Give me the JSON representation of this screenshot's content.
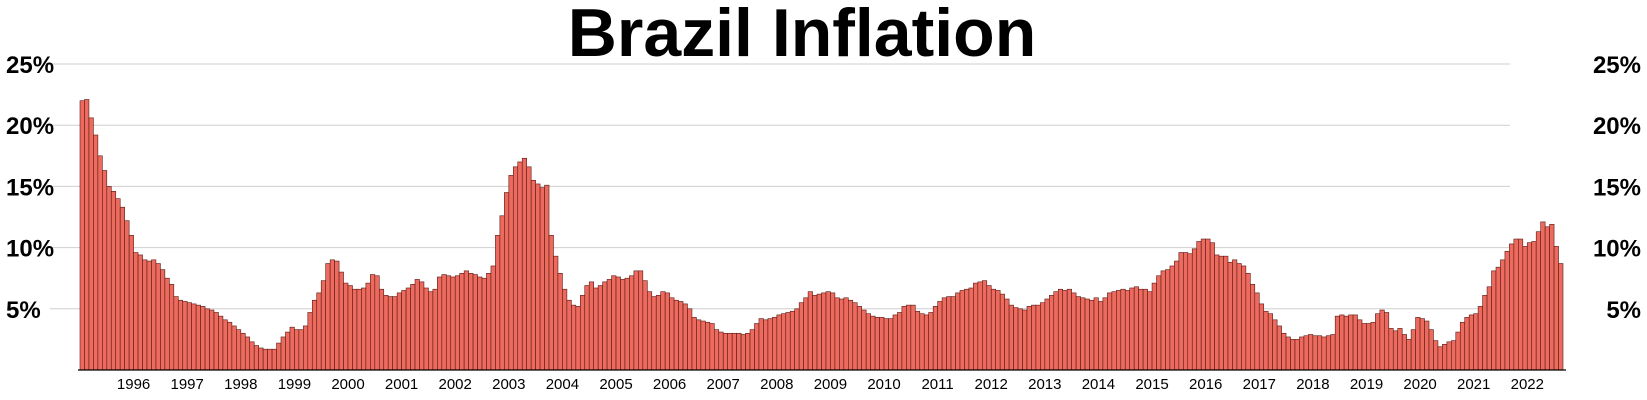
{
  "chart_data": {
    "type": "bar",
    "title": "Brazil Inflation",
    "xlabel": "",
    "ylabel": "",
    "ylim": [
      0,
      25
    ],
    "y_ticks": [
      "5%",
      "10%",
      "15%",
      "20%",
      "25%"
    ],
    "y_tick_values": [
      5,
      10,
      15,
      20,
      25
    ],
    "y_axis_sides": "both",
    "x_tick_labels": [
      "1996",
      "1997",
      "1998",
      "1999",
      "2000",
      "2001",
      "2002",
      "2003",
      "2004",
      "2005",
      "2006",
      "2007",
      "2008",
      "2009",
      "2010",
      "2011",
      "2012",
      "2013",
      "2014",
      "2015",
      "2016",
      "2017",
      "2018",
      "2019",
      "2020",
      "2021",
      "2022"
    ],
    "grid": true,
    "colors": {
      "bar": "#ec6a5e",
      "bar_edge": "#5a1a14"
    },
    "series": [
      {
        "frequency": "monthly",
        "start": "1995-07",
        "values": [
          22.0,
          22.1,
          20.6,
          19.2,
          17.5,
          16.3,
          15.0,
          14.6,
          14.0,
          13.3,
          12.2,
          11.0,
          9.6,
          9.4,
          9.0,
          8.9,
          9.0,
          8.7,
          8.2,
          7.5,
          7.0,
          6.0,
          5.7,
          5.6,
          5.5,
          5.4,
          5.3,
          5.2,
          5.0,
          4.9,
          4.7,
          4.4,
          4.1,
          3.9,
          3.6,
          3.3,
          3.0,
          2.7,
          2.3,
          2.0,
          1.8,
          1.7,
          1.7,
          1.7,
          2.2,
          2.7,
          3.1,
          3.5,
          3.3,
          3.3,
          3.6,
          4.7,
          5.7,
          6.3,
          7.3,
          8.7,
          9.0,
          8.9,
          8.0,
          7.1,
          6.9,
          6.6,
          6.6,
          6.7,
          7.1,
          7.8,
          7.7,
          6.6,
          6.1,
          6.0,
          6.0,
          6.3,
          6.5,
          6.7,
          7.0,
          7.4,
          7.2,
          6.7,
          6.4,
          6.6,
          7.6,
          7.8,
          7.7,
          7.6,
          7.7,
          7.9,
          8.1,
          7.9,
          7.8,
          7.6,
          7.5,
          7.9,
          8.5,
          11.0,
          12.6,
          14.5,
          15.9,
          16.6,
          17.0,
          17.3,
          16.6,
          15.5,
          15.2,
          14.9,
          15.1,
          11.0,
          9.3,
          7.9,
          6.6,
          5.7,
          5.3,
          5.2,
          6.1,
          6.9,
          7.2,
          6.7,
          6.9,
          7.2,
          7.4,
          7.7,
          7.6,
          7.4,
          7.5,
          7.7,
          8.1,
          8.1,
          7.3,
          6.4,
          6.0,
          6.1,
          6.4,
          6.3,
          5.9,
          5.7,
          5.6,
          5.4,
          5.0,
          4.3,
          4.1,
          4.0,
          3.9,
          3.8,
          3.3,
          3.1,
          3.0,
          3.0,
          3.0,
          3.0,
          2.9,
          3.0,
          3.3,
          3.8,
          4.2,
          4.1,
          4.2,
          4.3,
          4.5,
          4.6,
          4.7,
          4.8,
          5.0,
          5.5,
          5.9,
          6.4,
          6.1,
          6.2,
          6.3,
          6.4,
          6.3,
          5.9,
          5.8,
          5.9,
          5.7,
          5.5,
          5.2,
          4.9,
          4.6,
          4.4,
          4.3,
          4.3,
          4.2,
          4.2,
          4.5,
          4.7,
          5.2,
          5.3,
          5.3,
          4.8,
          4.6,
          4.5,
          4.7,
          5.2,
          5.6,
          5.9,
          6.0,
          6.0,
          6.3,
          6.5,
          6.6,
          6.7,
          7.1,
          7.2,
          7.3,
          6.9,
          6.6,
          6.5,
          6.2,
          5.8,
          5.3,
          5.1,
          5.0,
          4.9,
          5.2,
          5.3,
          5.3,
          5.5,
          5.8,
          6.1,
          6.4,
          6.6,
          6.5,
          6.6,
          6.3,
          6.0,
          5.9,
          5.8,
          5.7,
          5.9,
          5.6,
          5.9,
          6.3,
          6.4,
          6.5,
          6.6,
          6.5,
          6.7,
          6.8,
          6.6,
          6.6,
          6.4,
          7.1,
          7.7,
          8.1,
          8.2,
          8.5,
          8.9,
          9.6,
          9.6,
          9.5,
          9.9,
          10.5,
          10.7,
          10.7,
          10.4,
          9.4,
          9.3,
          9.3,
          8.8,
          9.0,
          8.7,
          8.5,
          7.9,
          7.0,
          6.3,
          5.4,
          4.8,
          4.6,
          4.1,
          3.6,
          3.0,
          2.7,
          2.5,
          2.5,
          2.7,
          2.8,
          2.9,
          2.8,
          2.8,
          2.7,
          2.8,
          2.9,
          4.4,
          4.5,
          4.4,
          4.5,
          4.5,
          4.1,
          3.8,
          3.8,
          3.9,
          4.6,
          4.9,
          4.7,
          3.4,
          3.2,
          3.4,
          2.9,
          2.5,
          3.3,
          4.3,
          4.2,
          4.0,
          3.3,
          2.4,
          1.9,
          2.1,
          2.3,
          2.4,
          3.1,
          3.9,
          4.3,
          4.5,
          4.6,
          5.2,
          6.1,
          6.8,
          8.1,
          8.4,
          9.0,
          9.7,
          10.3,
          10.7,
          10.7,
          10.1,
          10.4,
          10.5,
          11.3,
          12.1,
          11.7,
          11.9,
          10.1,
          8.7
        ]
      }
    ]
  }
}
